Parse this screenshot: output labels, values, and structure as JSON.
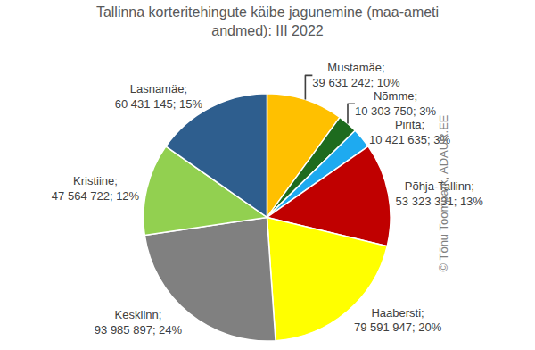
{
  "chart_data": {
    "type": "pie",
    "title": "Tallinna korteritehingute käibe jagunemine (maa-ameti\nandmed): III 2022",
    "categories": [
      "Mustamäe",
      "Nõmme",
      "Pirita",
      "Põhja-Tallinn",
      "Haabersti",
      "Kesklinn",
      "Kristiine",
      "Lasnamäe"
    ],
    "values": [
      39631242,
      10303750,
      10421635,
      53323331,
      79591947,
      93985897,
      47564722,
      60431145
    ],
    "value_labels": [
      "Mustamäe;\n39 631 242; 10%",
      "Nõmme;\n10 303 750; 3%",
      "Pirita;\n10 421 635; 3%",
      "Põhja-Tallinn;\n53 323 331; 13%",
      "Haabersti;\n79 591 947; 20%",
      "Kesklinn;\n93 985 897; 24%",
      "Kristiine;\n47 564 722; 12%",
      "Lasnamäe;\n60 431 145; 15%"
    ],
    "colors": [
      "#FFC000",
      "#1E6B1E",
      "#1EAAF0",
      "#C00000",
      "#FFFF00",
      "#808080",
      "#92D050",
      "#2E5E8E"
    ],
    "data_labels": true,
    "annotations": [
      "© Tõnu Toompark, ADAUR.EE"
    ]
  }
}
